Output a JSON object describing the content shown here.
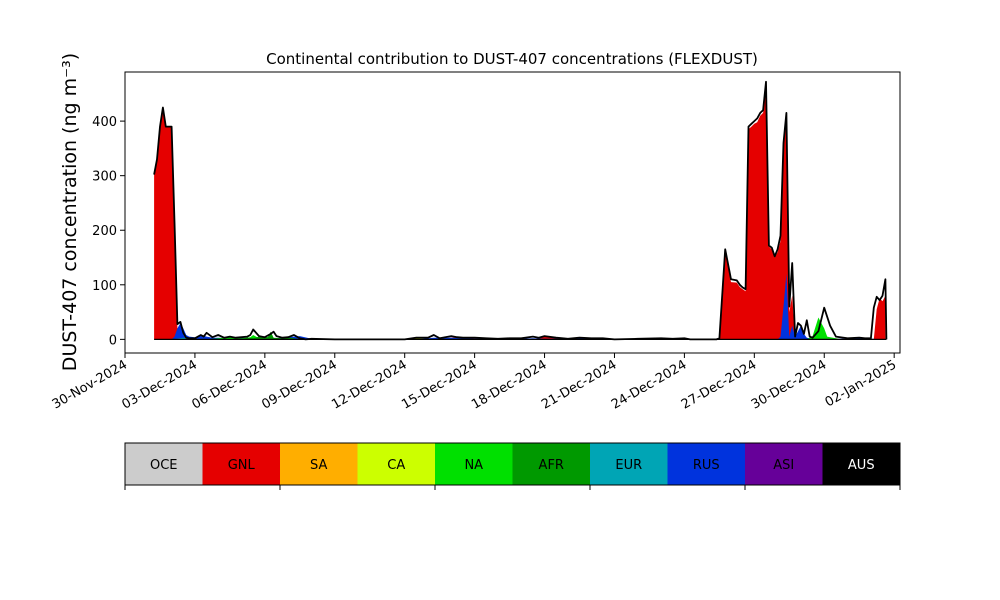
{
  "chart_data": {
    "type": "area",
    "title": "Continental contribution to DUST-407 concentrations (FLEXDUST)",
    "ylabel": "DUST-407 concentration (ng m⁻³)",
    "xlabel": "",
    "x_unit": "date",
    "xlim": [
      "2024-11-30T00:00",
      "2025-01-02T06:00"
    ],
    "ylim": [
      -25,
      490
    ],
    "yticks": [
      0,
      100,
      200,
      300,
      400
    ],
    "xtick_labels": [
      "30-Nov-2024",
      "03-Dec-2024",
      "06-Dec-2024",
      "09-Dec-2024",
      "12-Dec-2024",
      "15-Dec-2024",
      "18-Dec-2024",
      "21-Dec-2024",
      "24-Dec-2024",
      "27-Dec-2024",
      "30-Dec-2024",
      "02-Jan-2025"
    ],
    "xtick_dates": [
      "2024-11-30",
      "2024-12-03",
      "2024-12-06",
      "2024-12-09",
      "2024-12-12",
      "2024-12-15",
      "2024-12-18",
      "2024-12-21",
      "2024-12-24",
      "2024-12-27",
      "2024-12-30",
      "2025-01-02"
    ],
    "legend_categories": [
      "OCE",
      "GNL",
      "SA",
      "CA",
      "NA",
      "AFR",
      "EUR",
      "RUS",
      "ASI",
      "AUS"
    ],
    "legend_colors": [
      "#cccccc",
      "#e50000",
      "#ffae00",
      "#ccff00",
      "#00e000",
      "#009900",
      "#00a5b5",
      "#0033dd",
      "#660099",
      "#000000"
    ],
    "legend_text_colors": [
      "#000000",
      "#000000",
      "#000000",
      "#000000",
      "#000000",
      "#000000",
      "#000000",
      "#000000",
      "#000000",
      "#ffffff"
    ],
    "legend_position": "below",
    "grid": false,
    "series": [
      {
        "name": "GNL",
        "color": "#e50000",
        "x": [
          "2024-12-01T06:00",
          "2024-12-01T09:00",
          "2024-12-01T12:00",
          "2024-12-01T15:00",
          "2024-12-01T18:00",
          "2024-12-01T21:00",
          "2024-12-02T00:00",
          "2024-12-02T03:00",
          "2024-12-02T06:00",
          "2024-12-02T09:00",
          "2024-12-02T12:00",
          "2024-12-02T15:00",
          "2024-12-02T18:00",
          "2024-12-03T00:00",
          "2024-12-05T12:00",
          "2024-12-05T21:00",
          "2024-12-06T06:00",
          "2024-12-06T09:00",
          "2024-12-06T15:00",
          "2024-12-07T06:00",
          "2024-12-12T00:00",
          "2024-12-13T12:00",
          "2024-12-14T00:00",
          "2024-12-14T12:00",
          "2024-12-15T00:00",
          "2024-12-16T12:00",
          "2024-12-17T12:00",
          "2024-12-17T18:00",
          "2024-12-18T00:00",
          "2024-12-18T12:00",
          "2024-12-19T00:00",
          "2024-12-22T00:00",
          "2024-12-23T06:00",
          "2024-12-23T18:00",
          "2024-12-24T00:00",
          "2024-12-24T03:00",
          "2024-12-24T06:00",
          "2024-12-24T12:00",
          "2024-12-24T18:00",
          "2024-12-25T00:00",
          "2024-12-25T06:00",
          "2024-12-25T09:00",
          "2024-12-25T12:00",
          "2024-12-25T18:00",
          "2024-12-26T00:00",
          "2024-12-26T06:00",
          "2024-12-26T09:00",
          "2024-12-26T12:00",
          "2024-12-26T15:00",
          "2024-12-26T18:00",
          "2024-12-26T21:00",
          "2024-12-27T00:00",
          "2024-12-27T03:00",
          "2024-12-27T06:00",
          "2024-12-27T09:00",
          "2024-12-27T12:00",
          "2024-12-27T15:00",
          "2024-12-27T18:00",
          "2024-12-27T21:00",
          "2024-12-28T00:00",
          "2024-12-28T03:00",
          "2024-12-28T06:00",
          "2024-12-28T09:00",
          "2024-12-28T12:00",
          "2024-12-28T15:00",
          "2024-12-28T18:00",
          "2024-12-28T21:00",
          "2024-12-29T00:00",
          "2024-12-30T00:00",
          "2024-12-31T18:00",
          "2024-12-31T21:00",
          "2025-01-01T00:00",
          "2025-01-01T03:00",
          "2025-01-01T06:00",
          "2025-01-01T09:00",
          "2025-01-01T12:00",
          "2025-01-01T15:00"
        ],
        "values": [
          302,
          330,
          390,
          425,
          390,
          390,
          390,
          210,
          20,
          8,
          3,
          1,
          0,
          0,
          0,
          3,
          2,
          1,
          0,
          0,
          0,
          1,
          3,
          4,
          1,
          1,
          0,
          3,
          5,
          2,
          0,
          0,
          0,
          1,
          2,
          0,
          0,
          0,
          0,
          0,
          0,
          0,
          2,
          160,
          105,
          104,
          96,
          92,
          88,
          385,
          390,
          395,
          398,
          410,
          415,
          470,
          170,
          165,
          150,
          160,
          180,
          350,
          410,
          50,
          80,
          0,
          5,
          0,
          0,
          0,
          0,
          0,
          0,
          55,
          75,
          70,
          80
        ]
      },
      {
        "name": "RUS",
        "color": "#0033dd",
        "x": [
          "2024-12-01T06:00",
          "2024-12-02T00:00",
          "2024-12-02T03:00",
          "2024-12-02T06:00",
          "2024-12-02T09:00",
          "2024-12-02T12:00",
          "2024-12-02T15:00",
          "2024-12-02T18:00",
          "2024-12-03T00:00",
          "2024-12-03T06:00",
          "2024-12-03T12:00",
          "2024-12-03T18:00",
          "2024-12-04T00:00",
          "2024-12-04T12:00",
          "2024-12-05T00:00",
          "2024-12-06T12:00",
          "2024-12-07T00:00",
          "2024-12-07T12:00",
          "2024-12-08T00:00",
          "2024-12-12T12:00",
          "2024-12-13T00:00",
          "2024-12-13T06:00",
          "2024-12-14T00:00",
          "2024-12-14T12:00",
          "2024-12-15T00:00",
          "2024-12-15T12:00",
          "2024-12-16T00:00",
          "2024-12-17T00:00",
          "2024-12-17T12:00",
          "2024-12-18T00:00",
          "2024-12-19T00:00",
          "2024-12-19T12:00",
          "2024-12-20T00:00",
          "2024-12-20T12:00",
          "2024-12-21T00:00",
          "2024-12-28T00:00",
          "2024-12-28T03:00",
          "2024-12-28T06:00",
          "2024-12-28T09:00",
          "2024-12-28T12:00",
          "2024-12-28T15:00",
          "2024-12-28T18:00",
          "2024-12-28T21:00",
          "2024-12-29T00:00",
          "2024-12-29T03:00",
          "2024-12-29T06:00",
          "2024-12-29T09:00",
          "2024-12-29T12:00",
          "2024-12-30T00:00",
          "2024-12-31T00:00",
          "2024-12-31T12:00",
          "2025-01-01T00:00",
          "2025-01-01T15:00"
        ],
        "values": [
          0,
          0,
          5,
          20,
          30,
          20,
          8,
          5,
          4,
          8,
          5,
          3,
          3,
          2,
          3,
          2,
          4,
          6,
          1,
          0,
          2,
          3,
          3,
          2,
          1,
          2,
          1,
          1,
          2,
          1,
          1,
          2,
          1,
          2,
          0,
          0,
          5,
          60,
          120,
          5,
          25,
          5,
          15,
          25,
          10,
          3,
          2,
          2,
          1,
          1,
          2,
          1,
          0
        ]
      },
      {
        "name": "NA",
        "color": "#00e000",
        "x": [
          "2024-12-03T12:00",
          "2024-12-04T00:00",
          "2024-12-04T12:00",
          "2024-12-05T00:00",
          "2024-12-05T09:00",
          "2024-12-05T12:00",
          "2024-12-05T18:00",
          "2024-12-06T00:00",
          "2024-12-06T06:00",
          "2024-12-06T12:00",
          "2024-12-07T00:00",
          "2024-12-07T12:00",
          "2024-12-29T06:00",
          "2024-12-29T12:00",
          "2024-12-29T18:00",
          "2024-12-30T00:00",
          "2024-12-30T03:00",
          "2024-12-30T06:00",
          "2024-12-30T12:00",
          "2024-12-30T18:00"
        ],
        "values": [
          0,
          2,
          4,
          2,
          4,
          8,
          2,
          5,
          3,
          1,
          2,
          0,
          0,
          6,
          40,
          20,
          5,
          4,
          2,
          0
        ]
      },
      {
        "name": "AFR",
        "color": "#009900",
        "x": [
          "2024-12-04T18:00",
          "2024-12-05T06:00",
          "2024-12-05T12:00",
          "2024-12-05T18:00",
          "2024-12-06T03:00",
          "2024-12-06T06:00",
          "2024-12-06T09:00",
          "2024-12-06T18:00",
          "2024-12-07T03:00",
          "2024-12-07T12:00"
        ],
        "values": [
          0,
          3,
          2,
          5,
          4,
          14,
          3,
          2,
          3,
          0
        ]
      },
      {
        "name": "CA",
        "color": "#ccff00",
        "x": [
          "2024-12-11T00:00",
          "2024-12-12T12:00",
          "2024-12-13T00:00",
          "2024-12-22T00:00",
          "2024-12-23T00:00",
          "2024-12-24T00:00"
        ],
        "values": [
          0,
          2,
          0,
          0,
          2,
          0
        ]
      },
      {
        "name": "EUR",
        "color": "#00a5b5",
        "x": [
          "2024-12-02T00:00",
          "2024-12-02T12:00",
          "2024-12-03T00:00",
          "2024-12-15T00:00",
          "2024-12-15T12:00",
          "2024-12-16T00:00",
          "2024-12-19T12:00",
          "2024-12-20T00:00",
          "2024-12-20T12:00"
        ],
        "values": [
          0,
          3,
          0,
          0,
          2,
          0,
          0,
          2,
          0
        ]
      }
    ],
    "total": {
      "name": "Total",
      "color": "#000000",
      "x": [
        "2024-12-01T06:00",
        "2024-12-01T09:00",
        "2024-12-01T12:00",
        "2024-12-01T15:00",
        "2024-12-01T18:00",
        "2024-12-01T21:00",
        "2024-12-02T00:00",
        "2024-12-02T03:00",
        "2024-12-02T06:00",
        "2024-12-02T09:00",
        "2024-12-02T12:00",
        "2024-12-02T15:00",
        "2024-12-02T18:00",
        "2024-12-03T00:00",
        "2024-12-03T06:00",
        "2024-12-03T09:00",
        "2024-12-03T12:00",
        "2024-12-03T18:00",
        "2024-12-04T00:00",
        "2024-12-04T06:00",
        "2024-12-04T12:00",
        "2024-12-04T18:00",
        "2024-12-05T00:00",
        "2024-12-05T06:00",
        "2024-12-05T09:00",
        "2024-12-05T12:00",
        "2024-12-05T18:00",
        "2024-12-06T00:00",
        "2024-12-06T06:00",
        "2024-12-06T09:00",
        "2024-12-06T12:00",
        "2024-12-06T18:00",
        "2024-12-07T00:00",
        "2024-12-07T06:00",
        "2024-12-07T12:00",
        "2024-12-07T18:00",
        "2024-12-08T00:00",
        "2024-12-09T00:00",
        "2024-12-10T00:00",
        "2024-12-11T00:00",
        "2024-12-12T00:00",
        "2024-12-12T12:00",
        "2024-12-13T00:00",
        "2024-12-13T06:00",
        "2024-12-13T12:00",
        "2024-12-14T00:00",
        "2024-12-14T06:00",
        "2024-12-14T12:00",
        "2024-12-15T00:00",
        "2024-12-15T12:00",
        "2024-12-16T00:00",
        "2024-12-16T12:00",
        "2024-12-17T00:00",
        "2024-12-17T12:00",
        "2024-12-17T18:00",
        "2024-12-18T00:00",
        "2024-12-18T12:00",
        "2024-12-19T00:00",
        "2024-12-19T12:00",
        "2024-12-20T00:00",
        "2024-12-20T12:00",
        "2024-12-21T00:00",
        "2024-12-22T00:00",
        "2024-12-23T00:00",
        "2024-12-23T12:00",
        "2024-12-24T00:00",
        "2024-12-24T06:00",
        "2024-12-24T12:00",
        "2024-12-24T18:00",
        "2024-12-25T00:00",
        "2024-12-25T06:00",
        "2024-12-25T09:00",
        "2024-12-25T12:00",
        "2024-12-25T18:00",
        "2024-12-26T00:00",
        "2024-12-26T06:00",
        "2024-12-26T09:00",
        "2024-12-26T12:00",
        "2024-12-26T15:00",
        "2024-12-26T18:00",
        "2024-12-26T21:00",
        "2024-12-27T00:00",
        "2024-12-27T03:00",
        "2024-12-27T06:00",
        "2024-12-27T09:00",
        "2024-12-27T12:00",
        "2024-12-27T15:00",
        "2024-12-27T18:00",
        "2024-12-27T21:00",
        "2024-12-28T00:00",
        "2024-12-28T03:00",
        "2024-12-28T06:00",
        "2024-12-28T09:00",
        "2024-12-28T12:00",
        "2024-12-28T15:00",
        "2024-12-28T18:00",
        "2024-12-28T21:00",
        "2024-12-29T00:00",
        "2024-12-29T03:00",
        "2024-12-29T06:00",
        "2024-12-29T09:00",
        "2024-12-29T12:00",
        "2024-12-29T18:00",
        "2024-12-30T00:00",
        "2024-12-30T06:00",
        "2024-12-30T12:00",
        "2024-12-31T00:00",
        "2024-12-31T12:00",
        "2024-12-31T18:00",
        "2025-01-01T00:00",
        "2025-01-01T03:00",
        "2025-01-01T06:00",
        "2025-01-01T09:00",
        "2025-01-01T12:00",
        "2025-01-01T15:00",
        "2025-01-01T16:00"
      ],
      "values": [
        302,
        330,
        390,
        425,
        390,
        390,
        390,
        215,
        28,
        32,
        12,
        3,
        2,
        2,
        8,
        5,
        12,
        4,
        8,
        3,
        5,
        3,
        4,
        5,
        8,
        18,
        6,
        4,
        10,
        14,
        6,
        3,
        4,
        8,
        2,
        0,
        1,
        0,
        0,
        0,
        0,
        3,
        3,
        8,
        2,
        6,
        4,
        3,
        3,
        2,
        1,
        2,
        2,
        5,
        3,
        6,
        3,
        1,
        3,
        2,
        2,
        0,
        1,
        2,
        1,
        2,
        0,
        0,
        0,
        0,
        0,
        0,
        2,
        165,
        110,
        108,
        100,
        95,
        92,
        390,
        395,
        400,
        405,
        415,
        420,
        472,
        172,
        168,
        152,
        165,
        190,
        360,
        415,
        60,
        140,
        5,
        30,
        25,
        10,
        35,
        5,
        3,
        15,
        58,
        25,
        5,
        2,
        3,
        2,
        2,
        58,
        78,
        72,
        80,
        110,
        0
      ]
    }
  }
}
